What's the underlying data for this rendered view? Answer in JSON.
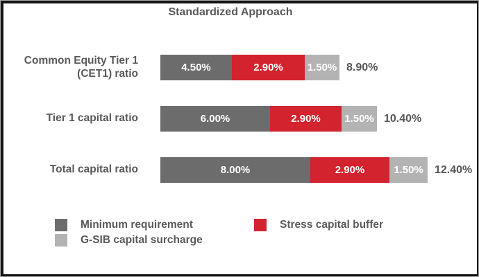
{
  "title": "Standardized Approach",
  "colors": {
    "minimum_requirement": "#6c6c6c",
    "stress_capital_buffer": "#d2232e",
    "gsib_capital_surcharge": "#b3b3b3",
    "text": "#595959",
    "in_bar_text": "#ffffff",
    "frame_border": "#151515",
    "background": "#ffffff"
  },
  "chart_data": {
    "type": "bar",
    "orientation": "horizontal",
    "stacked": true,
    "title": "Standardized Approach",
    "grid": false,
    "legend_position": "bottom",
    "categories": [
      "Common Equity Tier 1 (CET1) ratio",
      "Tier 1 capital ratio",
      "Total capital ratio"
    ],
    "series": [
      {
        "name": "Minimum requirement",
        "color": "#6c6c6c",
        "values": [
          4.5,
          6.0,
          8.0
        ],
        "labels": [
          "4.50%",
          "6.00%",
          "8.00%"
        ]
      },
      {
        "name": "Stress capital buffer",
        "color": "#d2232e",
        "values": [
          2.9,
          2.9,
          2.9
        ],
        "labels": [
          "2.90%",
          "2.90%",
          "2.90%"
        ]
      },
      {
        "name": "G-SIB capital surcharge",
        "color": "#b3b3b3",
        "values": [
          1.5,
          1.5,
          1.5
        ],
        "labels": [
          "1.50%",
          "1.50%",
          "1.50%"
        ]
      }
    ],
    "totals": [
      "8.90%",
      "10.40%",
      "12.40%"
    ]
  },
  "legend": {
    "items": [
      {
        "label": "Minimum requirement",
        "color": "#6c6c6c"
      },
      {
        "label": "Stress capital buffer",
        "color": "#d2232e"
      },
      {
        "label": "G-SIB capital surcharge",
        "color": "#b3b3b3"
      }
    ]
  }
}
